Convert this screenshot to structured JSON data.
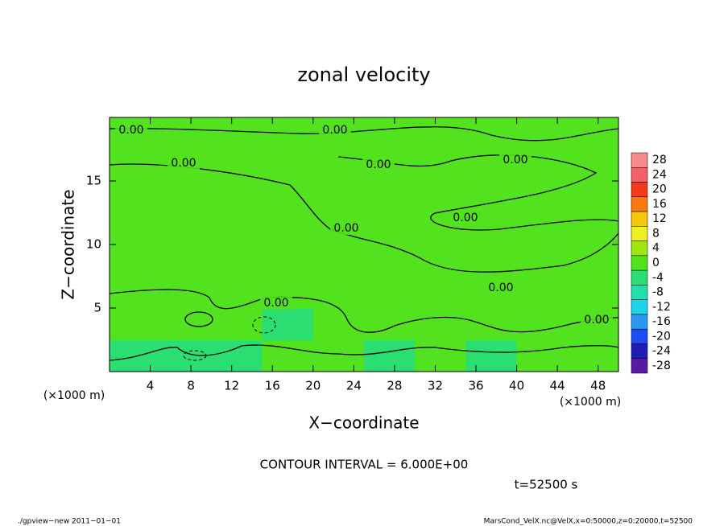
{
  "chart_data": {
    "type": "contour",
    "title": "zonal velocity",
    "x_label": "X−coordinate",
    "y_label": "Z−coordinate",
    "x_unit": "(×1000 m)",
    "y_unit": "(×1000 m)",
    "x": [
      2.5,
      7.5,
      12.5,
      17.5,
      22.5,
      27.5,
      32.5,
      37.5,
      42.5,
      47.5
    ],
    "y": [
      1.25,
      3.75,
      6.25,
      8.75,
      11.25,
      13.75,
      16.25,
      18.75
    ],
    "values": [
      [
        -3,
        -4,
        -3,
        -2,
        -1,
        -3,
        -2,
        -4,
        -2,
        -2
      ],
      [
        -2,
        1,
        -2,
        -3,
        -1,
        -1,
        1,
        -1,
        0,
        -1
      ],
      [
        0,
        1,
        0,
        0,
        -1,
        1,
        1,
        0,
        0,
        1
      ],
      [
        0,
        0,
        0,
        0,
        0,
        1,
        0,
        0,
        0,
        0
      ],
      [
        0,
        0,
        0,
        0,
        1,
        0,
        0,
        0,
        0,
        0
      ],
      [
        0,
        0,
        0,
        0,
        0,
        1,
        1,
        0,
        0,
        0
      ],
      [
        0,
        0,
        0,
        0,
        1,
        0,
        1,
        1,
        0,
        0
      ],
      [
        0,
        0,
        0,
        0,
        0,
        0,
        0,
        0,
        0,
        0
      ]
    ],
    "xlim": [
      0,
      50
    ],
    "ylim": [
      0,
      20
    ],
    "xticks": [
      4,
      8,
      12,
      16,
      20,
      24,
      28,
      32,
      36,
      40,
      44,
      48
    ],
    "yticks": [
      5,
      10,
      15
    ],
    "colorbar": {
      "levels": [
        28,
        24,
        20,
        16,
        12,
        8,
        4,
        0,
        -4,
        -8,
        -12,
        -16,
        -20,
        -24,
        -28
      ],
      "colors": [
        "#f58a8a",
        "#f4606a",
        "#f23a1e",
        "#f77a10",
        "#f8c60e",
        "#eef020",
        "#9ee612",
        "#52e21e",
        "#2bde72",
        "#22e0ae",
        "#1ed2ea",
        "#2a98f0",
        "#1c4cf2",
        "#1e1eb4",
        "#5a1aa0"
      ]
    },
    "contour_labels": [
      "0.00",
      "0.00",
      "0.00",
      "0.00",
      "0.00",
      "0.00",
      "0.00",
      "0.00",
      "0.00",
      "0.00"
    ],
    "contour_interval": "CONTOUR INTERVAL = 6.000E+00",
    "time": "t=52500 s",
    "footer_left": "./gpview−new   2011−01−01",
    "footer_right": "MarsCond_VelX.nc@VelX,x=0:50000,z=0:20000,t=52500"
  }
}
